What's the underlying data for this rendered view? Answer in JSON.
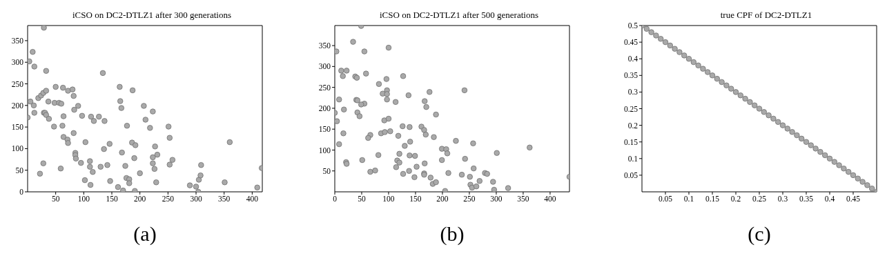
{
  "chart_data": [
    {
      "type": "scatter",
      "title": "iCSO on DC2-DTLZ1 after 300 generations",
      "marker": "circle",
      "xlim": [
        0,
        418
      ],
      "ylim": [
        0,
        385
      ],
      "xticks": [
        50,
        100,
        150,
        200,
        250,
        300,
        350,
        400
      ],
      "yticks": [
        0,
        50,
        100,
        150,
        200,
        250,
        300,
        350
      ],
      "annotations": [
        "(a)"
      ],
      "series": [
        {
          "color": "#a9a9a9",
          "x": [
            29,
            9,
            3,
            12,
            33,
            134,
            5,
            11,
            12,
            0,
            19,
            24,
            28,
            33,
            50,
            63,
            72,
            80,
            82,
            37,
            48,
            56,
            60,
            83,
            90,
            29,
            31,
            33,
            38,
            64,
            47,
            62,
            82,
            97,
            113,
            118,
            127,
            137,
            164,
            187,
            165,
            167,
            177,
            207,
            210,
            223,
            218,
            251,
            253,
            64,
            71,
            72,
            85,
            85,
            86,
            103,
            95,
            111,
            111,
            116,
            130,
            136,
            142,
            146,
            168,
            174,
            186,
            192,
            190,
            176,
            181,
            181,
            161,
            170,
            191,
            147,
            112,
            102,
            59,
            28,
            22,
            200,
            227,
            231,
            223,
            223,
            226,
            229,
            253,
            258,
            289,
            300,
            304,
            305,
            308,
            309,
            351,
            360,
            409,
            417
          ],
          "values": [
            380,
            324,
            302,
            290,
            280,
            275,
            209,
            200,
            183,
            172,
            217,
            223,
            229,
            234,
            243,
            241,
            234,
            237,
            222,
            209,
            206,
            206,
            204,
            190,
            199,
            183,
            183,
            178,
            169,
            175,
            151,
            153,
            136,
            176,
            174,
            164,
            174,
            164,
            243,
            235,
            210,
            194,
            153,
            199,
            167,
            186,
            148,
            151,
            125,
            127,
            121,
            113,
            90,
            85,
            77,
            115,
            67,
            71,
            58,
            46,
            58,
            99,
            62,
            111,
            91,
            60,
            114,
            108,
            78,
            32,
            29,
            20,
            11,
            3,
            2,
            25,
            16,
            27,
            54,
            66,
            42,
            43,
            105,
            86,
            80,
            66,
            53,
            22,
            63,
            74,
            15,
            12,
            0,
            28,
            38,
            62,
            22,
            115,
            10,
            55
          ]
        }
      ]
    },
    {
      "type": "scatter",
      "title": "iCSO on DC2-DTLZ1 after 500 generations",
      "marker": "circle",
      "xlim": [
        0,
        436
      ],
      "ylim": [
        0,
        398
      ],
      "xticks": [
        0,
        50,
        100,
        150,
        200,
        250,
        300,
        350,
        400
      ],
      "yticks": [
        50,
        100,
        150,
        200,
        250,
        300,
        350
      ],
      "annotations": [
        "(b)"
      ],
      "series": [
        {
          "color": "#a9a9a9",
          "x": [
            49,
            34,
            3,
            55,
            100,
            12,
            22,
            15,
            38,
            41,
            58,
            96,
            127,
            82,
            89,
            97,
            97,
            97,
            8,
            40,
            42,
            55,
            49,
            113,
            137,
            176,
            241,
            167,
            170,
            188,
            0,
            17,
            42,
            46,
            4,
            92,
            100,
            16,
            8,
            86,
            93,
            103,
            126,
            139,
            161,
            166,
            169,
            184,
            66,
            62,
            118,
            140,
            130,
            225,
            257,
            199,
            207,
            209,
            362,
            301,
            120,
            139,
            149,
            81,
            21,
            22,
            51,
            116,
            120,
            167,
            199,
            242,
            114,
            152,
            66,
            75,
            127,
            138,
            148,
            166,
            166,
            178,
            182,
            188,
            211,
            236,
            258,
            251,
            252,
            255,
            263,
            269,
            279,
            283,
            294,
            296,
            322,
            205,
            436
          ],
          "values": [
            397,
            359,
            336,
            336,
            345,
            290,
            290,
            277,
            276,
            273,
            283,
            270,
            277,
            258,
            235,
            243,
            234,
            221,
            221,
            220,
            219,
            211,
            209,
            215,
            231,
            239,
            243,
            217,
            203,
            185,
            189,
            197,
            190,
            181,
            169,
            171,
            175,
            140,
            114,
            140,
            143,
            145,
            157,
            155,
            156,
            148,
            137,
            131,
            136,
            129,
            134,
            120,
            110,
            122,
            116,
            103,
            102,
            92,
            106,
            93,
            91,
            87,
            86,
            88,
            71,
            67,
            76,
            75,
            70,
            68,
            76,
            79,
            59,
            60,
            48,
            51,
            43,
            50,
            35,
            44,
            41,
            34,
            19,
            23,
            45,
            41,
            56,
            36,
            17,
            10,
            13,
            26,
            45,
            43,
            24,
            5,
            9,
            2,
            36
          ]
        }
      ]
    },
    {
      "type": "scatter",
      "title": "true CPF of DC2-DTLZ1",
      "marker": "circle",
      "xlim": [
        0,
        0.5
      ],
      "ylim": [
        0,
        0.5
      ],
      "xticks": [
        0.05,
        0.1,
        0.15,
        0.2,
        0.25,
        0.3,
        0.35,
        0.4,
        0.45
      ],
      "yticks": [
        0.05,
        0.1,
        0.15,
        0.2,
        0.25,
        0.3,
        0.35,
        0.4,
        0.45,
        0.5
      ],
      "annotations": [
        "(c)"
      ],
      "series": [
        {
          "color": "#a9a9a9",
          "x": [
            0,
            0.01,
            0.02,
            0.03,
            0.04,
            0.05,
            0.06,
            0.07,
            0.08,
            0.09,
            0.1,
            0.11,
            0.12,
            0.13,
            0.14,
            0.15,
            0.16,
            0.17,
            0.18,
            0.19,
            0.2,
            0.21,
            0.22,
            0.23,
            0.24,
            0.25,
            0.26,
            0.27,
            0.28,
            0.29,
            0.3,
            0.31,
            0.32,
            0.33,
            0.34,
            0.35,
            0.36,
            0.37,
            0.38,
            0.39,
            0.4,
            0.41,
            0.42,
            0.43,
            0.44,
            0.45,
            0.46,
            0.47,
            0.48,
            0.49,
            0.5
          ],
          "values": [
            0.5,
            0.49,
            0.48,
            0.47,
            0.46,
            0.45,
            0.44,
            0.43,
            0.42,
            0.41,
            0.4,
            0.39,
            0.38,
            0.37,
            0.36,
            0.35,
            0.34,
            0.33,
            0.32,
            0.31,
            0.3,
            0.29,
            0.28,
            0.27,
            0.26,
            0.25,
            0.24,
            0.23,
            0.22,
            0.21,
            0.2,
            0.19,
            0.18,
            0.17,
            0.16,
            0.15,
            0.14,
            0.13,
            0.12,
            0.11,
            0.1,
            0.09,
            0.08,
            0.07,
            0.06,
            0.05,
            0.04,
            0.03,
            0.02,
            0.01,
            0
          ]
        }
      ]
    }
  ]
}
